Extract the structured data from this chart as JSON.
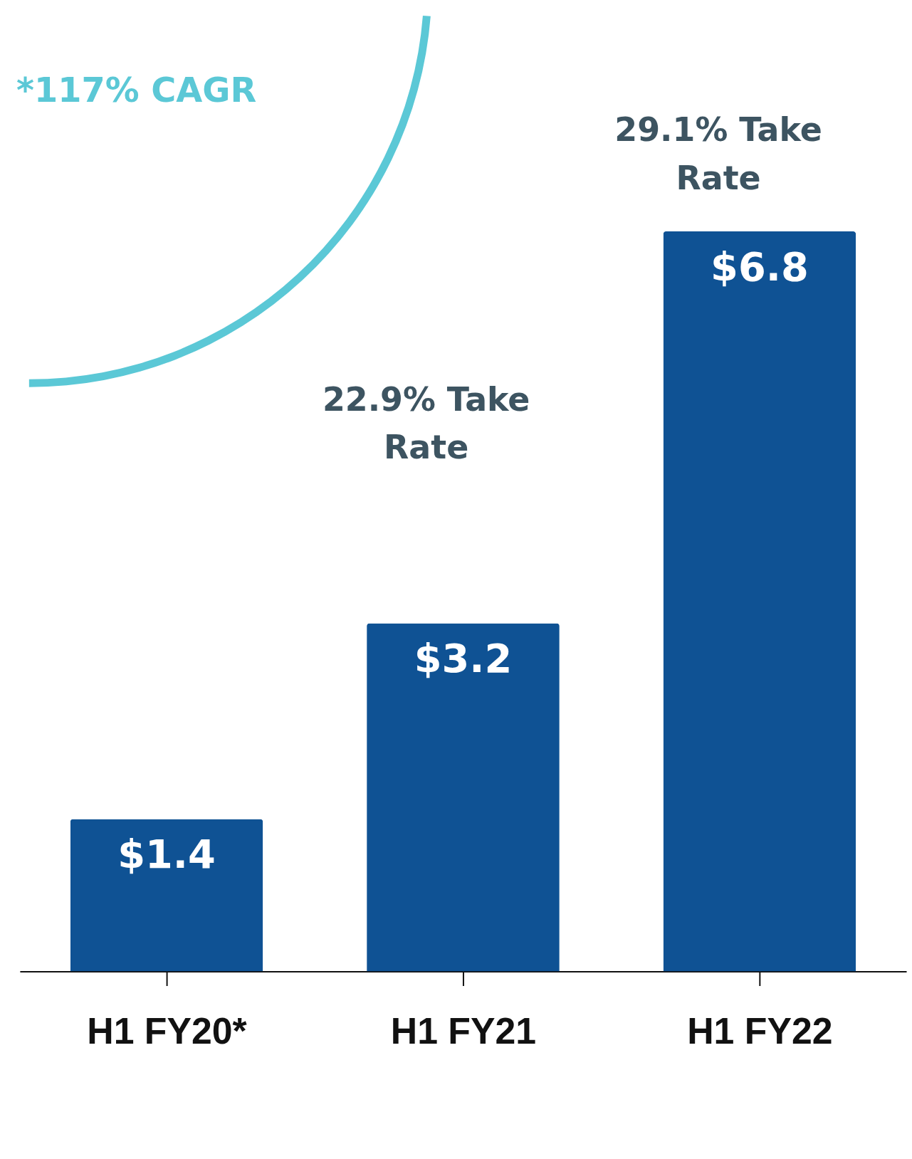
{
  "chart_data": {
    "type": "bar",
    "categories": [
      "H1 FY20*",
      "H1 FY21",
      "H1 FY22"
    ],
    "values": [
      1.4,
      3.2,
      6.8
    ],
    "value_labels": [
      "$1.4",
      "$3.2",
      "$6.8"
    ],
    "color": "#0f5294",
    "tick_labels": "x",
    "grid": false,
    "annotations": [
      "*117% CAGR",
      "22.9% Take Rate",
      "29.1% Take Rate"
    ]
  }
}
